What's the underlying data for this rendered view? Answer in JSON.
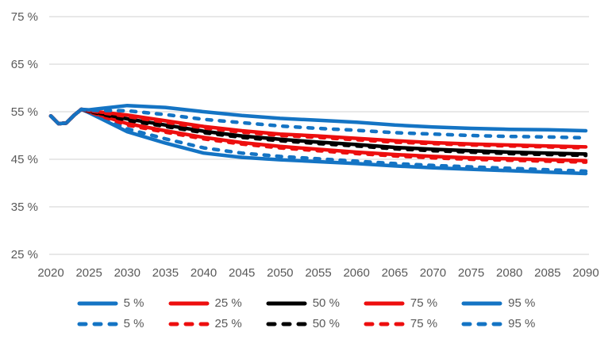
{
  "chart_data": {
    "type": "line",
    "title": "",
    "xlabel": "",
    "ylabel": "",
    "xlim": [
      2020,
      2090
    ],
    "ylim": [
      25,
      75
    ],
    "xticks": [
      2020,
      2025,
      2030,
      2035,
      2040,
      2045,
      2050,
      2055,
      2060,
      2065,
      2070,
      2075,
      2080,
      2085,
      2090
    ],
    "yticks": [
      25,
      35,
      45,
      55,
      65,
      75
    ],
    "ytick_suffix": " %",
    "grid": "horizontal-only",
    "legend_position": "bottom-two-rows",
    "axis_label_color": "#595959",
    "grid_color": "#D9D9D9",
    "x": [
      2020,
      2021,
      2022,
      2023,
      2024,
      2025,
      2030,
      2035,
      2040,
      2045,
      2050,
      2055,
      2060,
      2065,
      2070,
      2075,
      2080,
      2085,
      2090
    ],
    "series": [
      {
        "name": "5 %",
        "color": "#1474C4",
        "dash": false,
        "values": [
          54.1,
          52.5,
          52.6,
          54.2,
          55.5,
          54.8,
          50.8,
          48.4,
          46.3,
          45.4,
          44.9,
          44.5,
          44.1,
          43.6,
          43.2,
          42.9,
          42.6,
          42.3,
          42.0
        ]
      },
      {
        "name": "25 %",
        "color": "#ED0E0E",
        "dash": false,
        "values": [
          54.1,
          52.5,
          52.6,
          54.2,
          55.5,
          55.0,
          52.5,
          51.0,
          49.6,
          48.5,
          47.7,
          47.1,
          46.5,
          46.0,
          45.6,
          45.3,
          45.1,
          44.9,
          44.7
        ]
      },
      {
        "name": "50 %",
        "color": "#000000",
        "dash": false,
        "values": [
          54.1,
          52.5,
          52.6,
          54.2,
          55.5,
          55.1,
          53.5,
          52.2,
          50.9,
          49.9,
          49.2,
          48.6,
          48.1,
          47.5,
          47.1,
          46.8,
          46.5,
          46.3,
          46.1
        ]
      },
      {
        "name": "75 %",
        "color": "#ED0E0E",
        "dash": false,
        "values": [
          54.1,
          52.5,
          52.6,
          54.2,
          55.5,
          55.2,
          54.3,
          53.1,
          51.9,
          51.0,
          50.3,
          49.9,
          49.4,
          48.9,
          48.5,
          48.2,
          48.0,
          47.8,
          47.6
        ]
      },
      {
        "name": "95 %",
        "color": "#1474C4",
        "dash": false,
        "values": [
          54.1,
          52.5,
          52.6,
          54.2,
          55.5,
          55.4,
          56.3,
          55.9,
          55.0,
          54.2,
          53.6,
          53.2,
          52.8,
          52.2,
          51.8,
          51.5,
          51.3,
          51.2,
          51.0
        ]
      },
      {
        "name": "5 %",
        "color": "#1474C4",
        "dash": true,
        "values": [
          54.1,
          52.5,
          52.6,
          54.2,
          55.5,
          54.9,
          51.4,
          49.3,
          47.4,
          46.3,
          45.6,
          45.1,
          44.6,
          44.1,
          43.7,
          43.4,
          43.1,
          42.8,
          42.5
        ]
      },
      {
        "name": "25 %",
        "color": "#ED0E0E",
        "dash": true,
        "values": [
          54.1,
          52.5,
          52.6,
          54.2,
          55.5,
          55.0,
          52.2,
          50.7,
          49.3,
          48.2,
          47.4,
          46.8,
          46.2,
          45.7,
          45.3,
          45.0,
          44.8,
          44.6,
          44.4
        ]
      },
      {
        "name": "50 %",
        "color": "#000000",
        "dash": true,
        "values": [
          54.1,
          52.5,
          52.6,
          54.2,
          55.5,
          55.1,
          53.2,
          51.9,
          50.6,
          49.6,
          48.9,
          48.3,
          47.8,
          47.2,
          46.8,
          46.5,
          46.2,
          46.0,
          45.8
        ]
      },
      {
        "name": "75 %",
        "color": "#ED0E0E",
        "dash": true,
        "values": [
          54.1,
          52.5,
          52.6,
          54.2,
          55.5,
          55.2,
          54.0,
          52.8,
          51.6,
          50.7,
          50.0,
          49.6,
          49.1,
          48.6,
          48.3,
          48.0,
          47.8,
          47.6,
          47.4
        ]
      },
      {
        "name": "95 %",
        "color": "#1474C4",
        "dash": true,
        "values": [
          54.1,
          52.5,
          52.6,
          54.2,
          55.5,
          55.3,
          55.2,
          54.4,
          53.4,
          52.7,
          52.0,
          51.5,
          51.1,
          50.6,
          50.3,
          50.0,
          49.8,
          49.7,
          49.5
        ]
      }
    ]
  }
}
